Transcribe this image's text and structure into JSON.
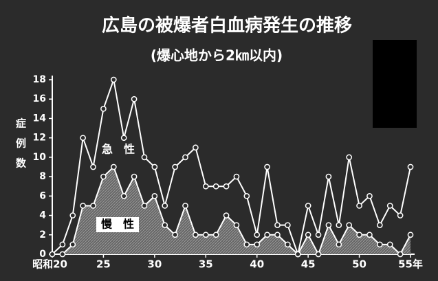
{
  "chart_data": {
    "type": "line",
    "title": "広島の被爆者白血病発生の推移",
    "subtitle": "(爆心地から2㎞以内)",
    "y_label": "症例数",
    "x": [
      20,
      21,
      22,
      23,
      24,
      25,
      26,
      27,
      28,
      29,
      30,
      31,
      32,
      33,
      34,
      35,
      36,
      37,
      38,
      39,
      40,
      41,
      42,
      43,
      44,
      45,
      46,
      47,
      48,
      49,
      50,
      51,
      52,
      53,
      54,
      55
    ],
    "series": [
      {
        "name": "急　性",
        "color": "#ffffff",
        "fill": false,
        "values": [
          0,
          1,
          4,
          12,
          9,
          15,
          18,
          12,
          16,
          10,
          9,
          5,
          9,
          10,
          11,
          7,
          7,
          7,
          8,
          6,
          2,
          9,
          3,
          3,
          0,
          5,
          2,
          8,
          3,
          10,
          5,
          6,
          3,
          5,
          4,
          9
        ]
      },
      {
        "name": "慢　性",
        "color": "#ffffff",
        "fill": true,
        "values": [
          null,
          0,
          1,
          5,
          5,
          8,
          9,
          6,
          8,
          5,
          6,
          3,
          2,
          5,
          2,
          2,
          2,
          4,
          3,
          1,
          1,
          2,
          2,
          1,
          0,
          2,
          0,
          3,
          1,
          3,
          2,
          2,
          1,
          1,
          0,
          2
        ]
      }
    ],
    "xlim": [
      20,
      55
    ],
    "xticks": [
      {
        "value": 20,
        "label": "昭和20"
      },
      25,
      30,
      35,
      40,
      45,
      50,
      {
        "value": 55,
        "label": "55年"
      }
    ],
    "ylim": [
      0,
      18
    ],
    "yticks": [
      0,
      2,
      4,
      6,
      8,
      10,
      12,
      14,
      16,
      18
    ]
  }
}
